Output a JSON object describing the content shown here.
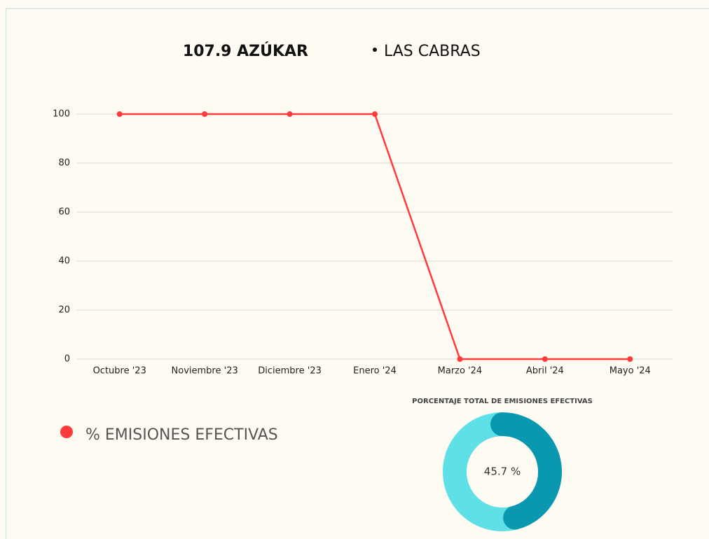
{
  "chart_data": [
    {
      "type": "line",
      "title": "107.9  AZÚKAR",
      "subtitle": "LAS CABRAS",
      "categories": [
        "Octubre '23",
        "Noviembre '23",
        "Diciembre '23",
        "Enero '24",
        "Marzo '24",
        "Abril '24",
        "Mayo '24"
      ],
      "series": [
        {
          "name": "% EMISIONES EFECTIVAS",
          "color": "#ff3b3b",
          "values": [
            100,
            100,
            100,
            100,
            0,
            0,
            0
          ]
        }
      ],
      "ylim": [
        0,
        100
      ],
      "yticks": [
        0,
        20,
        40,
        60,
        80,
        100
      ],
      "grid": true
    },
    {
      "type": "pie",
      "title": "PORCENTAJE TOTAL DE EMISIONES EFECTIVAS",
      "values": [
        45.7,
        54.3
      ],
      "value_labels": [
        "45.7 %",
        null
      ],
      "colors": [
        "#0a97b0",
        "#5fe0e6"
      ],
      "donut": true
    }
  ]
}
